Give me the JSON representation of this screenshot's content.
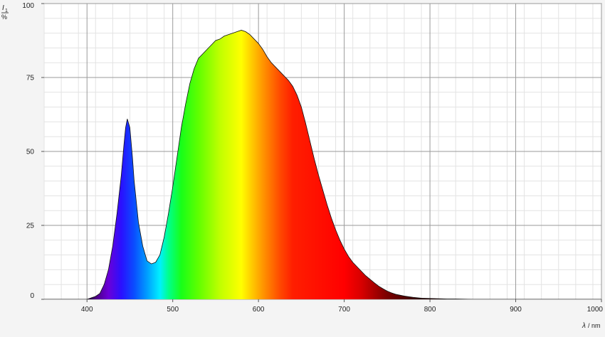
{
  "chart_data": {
    "type": "area",
    "ylabel_symbol": "I",
    "ylabel_sub": "1",
    "ylabel_unit": "%",
    "xlabel_symbol": "λ",
    "xlabel_unit": "/ nm",
    "xlim": [
      350,
      1000
    ],
    "ylim": [
      0,
      100
    ],
    "x_ticks": [
      400,
      500,
      600,
      700,
      800,
      900,
      1000
    ],
    "y_ticks": [
      0,
      25,
      50,
      75,
      100
    ],
    "grid": true,
    "legend": "none",
    "fill": "visible-spectrum-gradient",
    "series": [
      {
        "x": [
          350,
          380,
          400,
          410,
          415,
          420,
          425,
          430,
          435,
          440,
          443,
          445,
          447,
          450,
          453,
          455,
          460,
          465,
          470,
          475,
          480,
          485,
          490,
          495,
          500,
          505,
          510,
          515,
          520,
          525,
          530,
          535,
          540,
          545,
          550,
          555,
          560,
          565,
          570,
          575,
          580,
          585,
          590,
          595,
          600,
          605,
          610,
          615,
          620,
          625,
          630,
          635,
          640,
          645,
          650,
          655,
          660,
          665,
          670,
          675,
          680,
          685,
          690,
          695,
          700,
          705,
          710,
          715,
          720,
          725,
          730,
          735,
          740,
          745,
          750,
          755,
          760,
          770,
          780,
          790,
          800,
          810,
          820,
          830,
          850,
          900,
          950,
          1000
        ],
        "values": [
          0,
          0,
          0,
          1,
          2,
          5,
          10,
          18,
          29,
          42,
          52,
          58,
          61,
          58,
          48,
          40,
          26,
          18,
          13,
          12,
          12.5,
          15,
          21,
          29,
          38,
          48,
          58,
          66,
          73,
          78,
          81.5,
          83,
          84.5,
          86,
          87.5,
          88,
          89,
          89.5,
          90,
          90.5,
          91,
          90.5,
          89.5,
          88,
          86.5,
          84.5,
          82,
          80,
          78.5,
          77,
          75.5,
          74,
          72,
          69,
          65,
          59.5,
          53.5,
          47.5,
          42,
          37,
          32,
          27.5,
          23.5,
          20,
          17,
          14.5,
          12.5,
          11,
          9.5,
          8,
          6.8,
          5.6,
          4.5,
          3.6,
          2.8,
          2.2,
          1.7,
          1.1,
          0.7,
          0.4,
          0.3,
          0.2,
          0.1,
          0.1,
          0,
          0,
          0,
          0
        ]
      }
    ]
  }
}
